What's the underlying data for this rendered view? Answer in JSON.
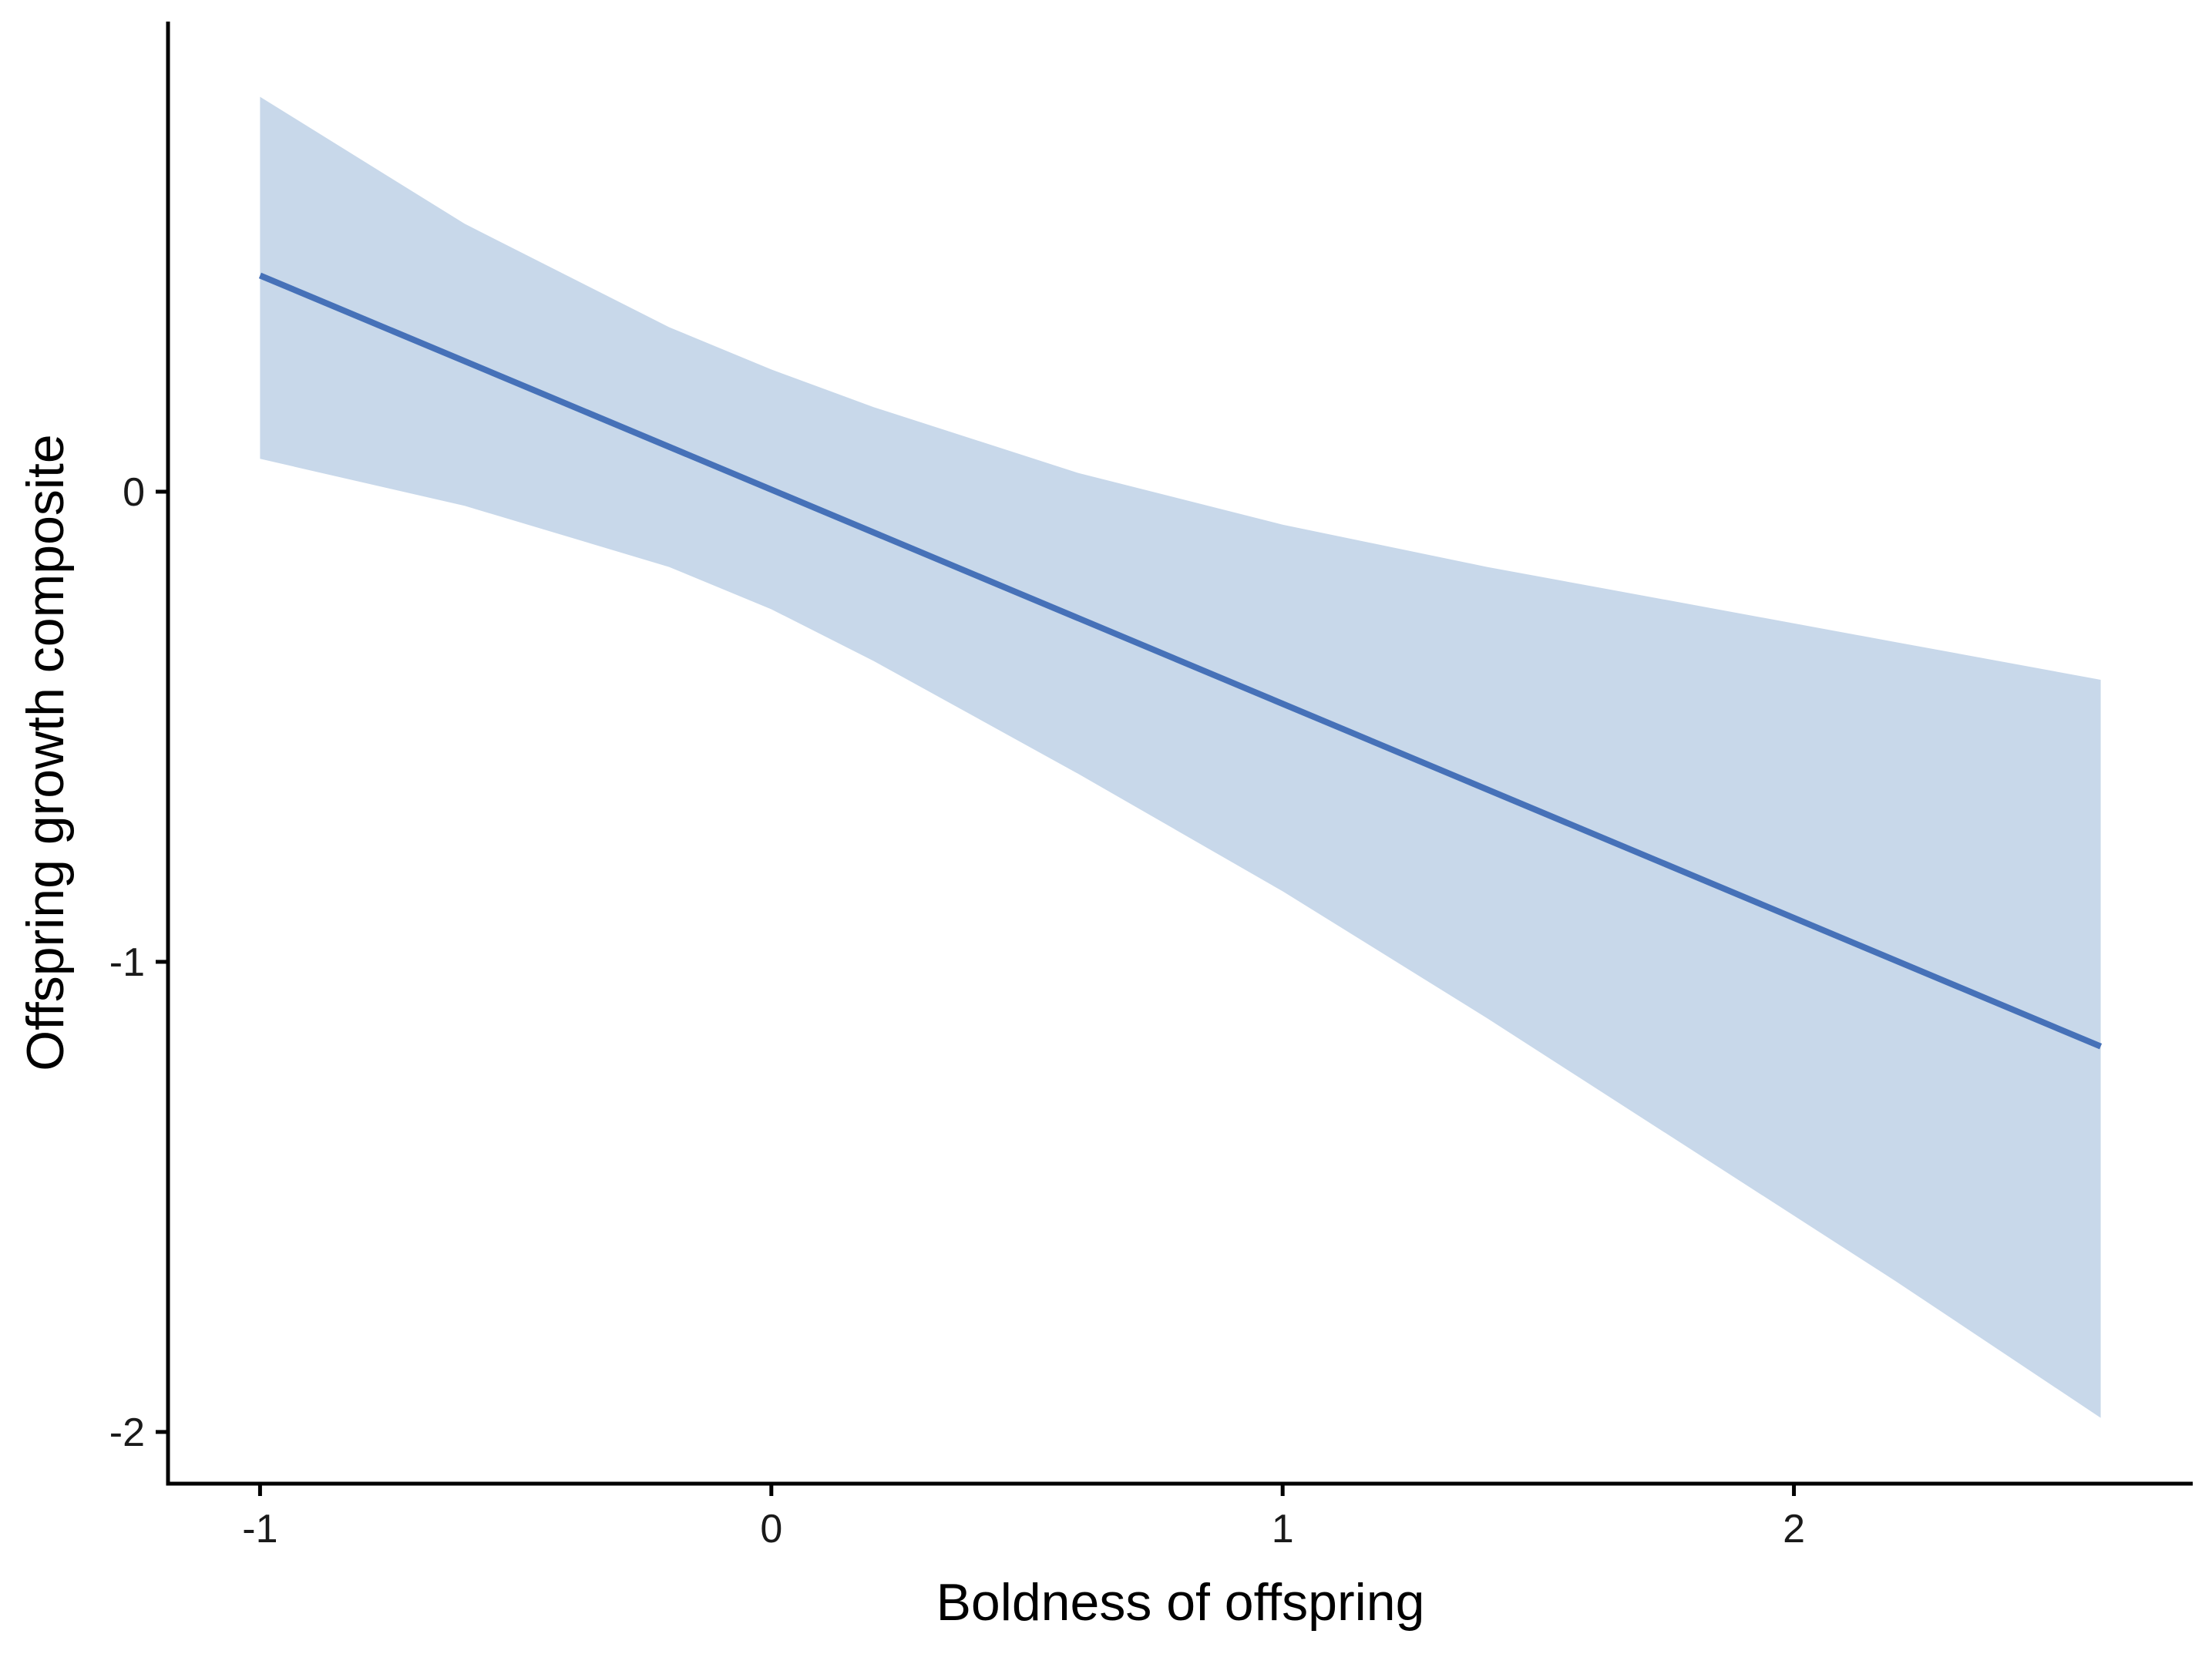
{
  "chart_data": {
    "type": "line",
    "title": "",
    "xlabel": "Boldness of offspring",
    "ylabel": "Offspring growth composite",
    "xlim": [
      -1.18,
      2.78
    ],
    "ylim": [
      -2.11,
      1.0
    ],
    "x_ticks": [
      -1,
      0,
      1,
      2
    ],
    "x_tick_labels": [
      "-1",
      "0",
      "1",
      "2"
    ],
    "y_ticks": [
      -2,
      -1,
      0
    ],
    "y_tick_labels": [
      "-2",
      "-1",
      "0"
    ],
    "grid": false,
    "legend": "none",
    "colors": {
      "line": "#4671b8",
      "ribbon": "#c8d8ea",
      "axis": "#000000"
    },
    "series": [
      {
        "x": [
          -1.0,
          2.6
        ],
        "y": [
          0.46,
          -1.18
        ]
      }
    ],
    "confidence_band": {
      "x": [
        -1.0,
        -0.6,
        -0.2,
        0.0,
        0.2,
        0.6,
        1.0,
        1.4,
        1.8,
        2.2,
        2.6
      ],
      "upper": [
        0.84,
        0.57,
        0.35,
        0.26,
        0.18,
        0.04,
        -0.07,
        -0.16,
        -0.24,
        -0.32,
        -0.4
      ],
      "lower": [
        0.07,
        -0.03,
        -0.16,
        -0.25,
        -0.36,
        -0.6,
        -0.85,
        -1.12,
        -1.4,
        -1.68,
        -1.97
      ]
    }
  }
}
